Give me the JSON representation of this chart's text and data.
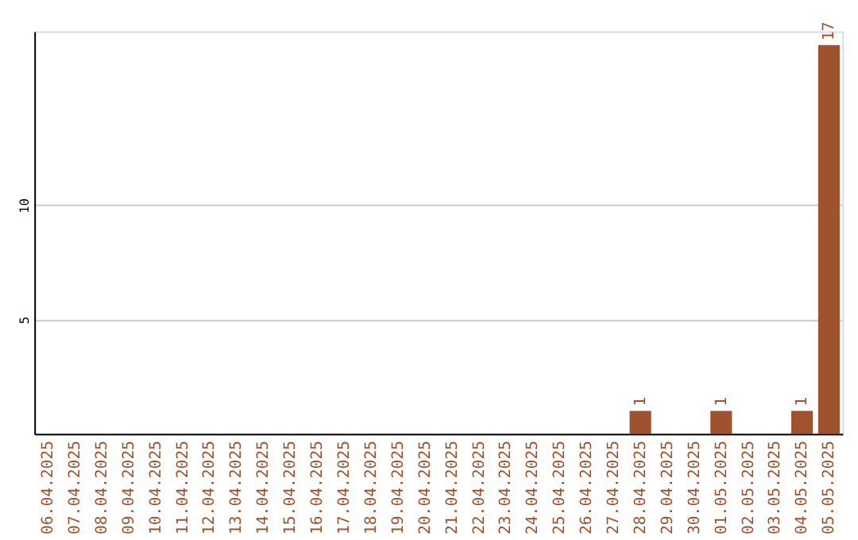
{
  "chart_data": {
    "type": "bar",
    "categories": [
      "06.04.2025",
      "07.04.2025",
      "08.04.2025",
      "09.04.2025",
      "10.04.2025",
      "11.04.2025",
      "12.04.2025",
      "13.04.2025",
      "14.04.2025",
      "15.04.2025",
      "16.04.2025",
      "17.04.2025",
      "18.04.2025",
      "19.04.2025",
      "20.04.2025",
      "21.04.2025",
      "22.04.2025",
      "23.04.2025",
      "24.04.2025",
      "25.04.2025",
      "26.04.2025",
      "27.04.2025",
      "28.04.2025",
      "29.04.2025",
      "30.04.2025",
      "01.05.2025",
      "02.05.2025",
      "03.05.2025",
      "04.05.2025",
      "05.05.2025"
    ],
    "values": [
      0,
      0,
      0,
      0,
      0,
      0,
      0,
      0,
      0,
      0,
      0,
      0,
      0,
      0,
      0,
      0,
      0,
      0,
      0,
      0,
      0,
      0,
      1,
      0,
      0,
      1,
      0,
      0,
      1,
      17
    ],
    "value_labels": [
      null,
      null,
      null,
      null,
      null,
      null,
      null,
      null,
      null,
      null,
      null,
      null,
      null,
      null,
      null,
      null,
      null,
      null,
      null,
      null,
      null,
      null,
      "1",
      null,
      null,
      "1",
      null,
      null,
      "1",
      "17"
    ],
    "color": "#a0522d",
    "ylim": [
      0,
      17.6
    ],
    "yticks": [
      5,
      10
    ],
    "grid": "y"
  }
}
